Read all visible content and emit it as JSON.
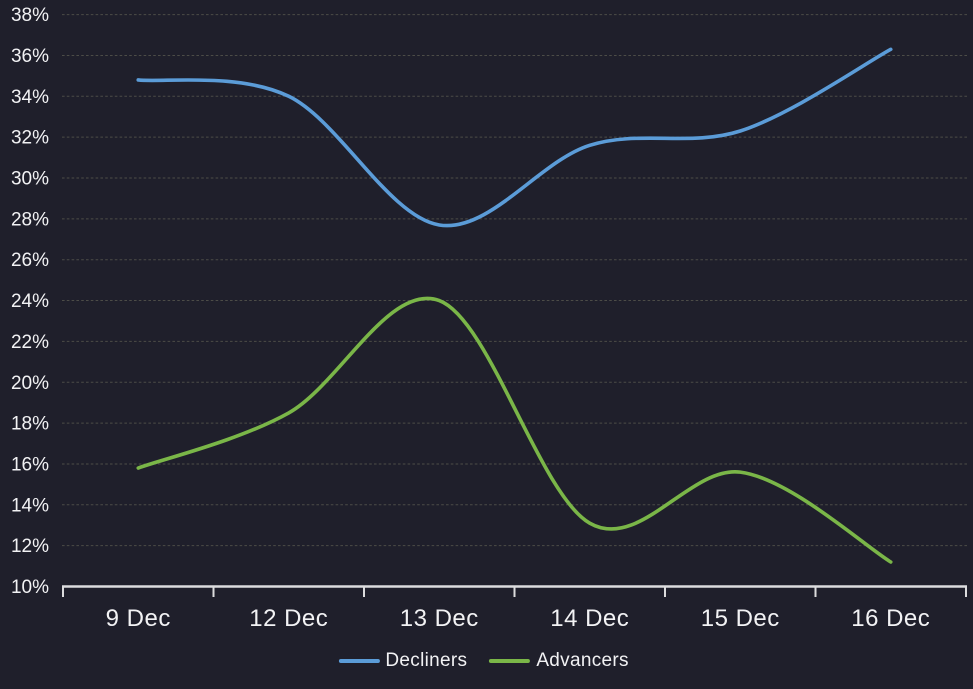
{
  "chart": {
    "background_color": "#1f1f2b",
    "text_color": "#f2f2f4",
    "grid_color": "#54544c",
    "axis_color": "#dcdcde"
  },
  "chart_data": {
    "type": "line",
    "smooth": true,
    "categories": [
      "9 Dec",
      "12 Dec",
      "13 Dec",
      "14 Dec",
      "15 Dec",
      "16 Dec"
    ],
    "series": [
      {
        "name": "Decliners",
        "color": "#5b9cd8",
        "values": [
          34.8,
          34.0,
          27.7,
          31.6,
          32.3,
          36.3
        ]
      },
      {
        "name": "Advancers",
        "color": "#7ab648",
        "values": [
          15.8,
          18.5,
          24.0,
          13.1,
          15.6,
          11.2
        ]
      }
    ],
    "ylim": [
      10,
      38
    ],
    "ytick_step": 2,
    "ytick_labels": [
      "10%",
      "12%",
      "14%",
      "16%",
      "18%",
      "20%",
      "22%",
      "24%",
      "26%",
      "28%",
      "30%",
      "32%",
      "34%",
      "36%",
      "38%"
    ],
    "grid": "horizontal-dashed",
    "legend_position": "bottom-center",
    "title": "",
    "xlabel": "",
    "ylabel": ""
  }
}
